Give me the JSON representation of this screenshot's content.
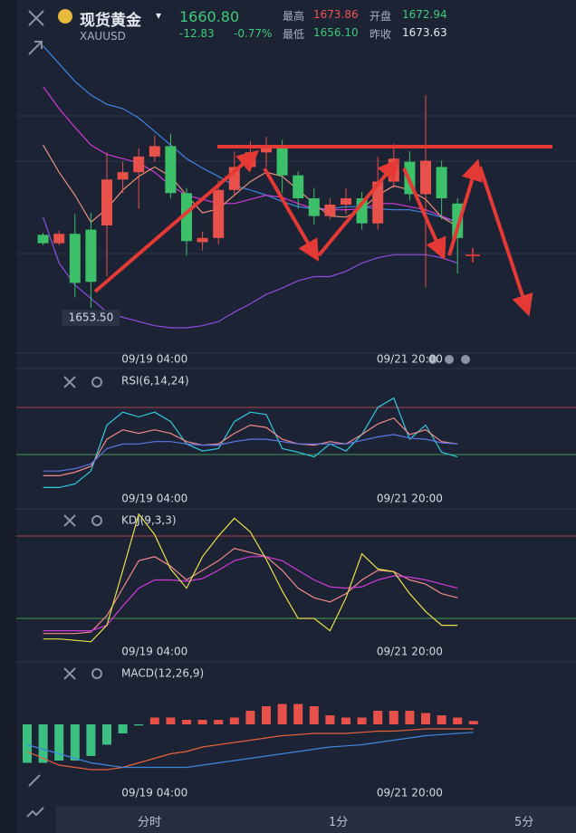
{
  "header": {
    "name": "现货黄金",
    "symbol": "XAUUSD",
    "price": "1660.80",
    "change": "-12.83",
    "change_pct": "-0.77%",
    "stats": [
      {
        "label": "最高",
        "value": "1673.86"
      },
      {
        "label": "开盘",
        "value": "1672.94"
      },
      {
        "label": "最低",
        "value": "1656.10"
      },
      {
        "label": "昨收",
        "value": "1673.63"
      }
    ]
  },
  "chart_data": [
    {
      "type": "candlestick",
      "ylim": [
        1648,
        1682
      ],
      "up_color": "#e8504a",
      "down_color": "#3cc06a",
      "categories": [
        null,
        null,
        null,
        null,
        null,
        null,
        null,
        "09/19 04:00",
        null,
        null,
        null,
        null,
        null,
        null,
        null,
        null,
        null,
        null,
        null,
        null,
        null,
        null,
        null,
        "09/21 20:00",
        null,
        null,
        null
      ],
      "open": [
        1660.5,
        1659.7,
        1660.6,
        1661.0,
        1661.4,
        1665.8,
        1666.5,
        1668.0,
        1669.0,
        1664.5,
        1659.8,
        1660.2,
        1664.8,
        1667.0,
        1668.4,
        1669.0,
        1666.2,
        1664.0,
        1662.3,
        1663.4,
        1664.0,
        1661.6,
        1665.6,
        1667.5,
        1664.4,
        1667.0,
        1663.5
      ],
      "high": [
        1660.7,
        1660.9,
        1662.5,
        1662.6,
        1668.4,
        1667.5,
        1668.8,
        1670.0,
        1670.2,
        1665.0,
        1660.8,
        1665.7,
        1668.5,
        1669.5,
        1669.9,
        1669.6,
        1666.6,
        1665.0,
        1664.0,
        1665.0,
        1664.6,
        1668.0,
        1669.2,
        1668.5,
        1673.86,
        1667.6,
        1664.0
      ],
      "low": [
        1659.5,
        1659.5,
        1654.5,
        1653.5,
        1656.5,
        1664.5,
        1663.0,
        1667.5,
        1664.0,
        1658.5,
        1659.0,
        1659.6,
        1664.3,
        1666.6,
        1667.0,
        1664.5,
        1663.0,
        1661.5,
        1662.0,
        1662.5,
        1661.0,
        1661.0,
        1665.0,
        1663.8,
        1655.5,
        1662.0,
        1656.8
      ],
      "close": [
        1659.7,
        1660.6,
        1655.9,
        1656.0,
        1665.8,
        1666.5,
        1668.0,
        1669.0,
        1664.5,
        1659.9,
        1660.2,
        1664.8,
        1667.0,
        1668.4,
        1669.0,
        1666.2,
        1664.0,
        1662.3,
        1663.4,
        1664.0,
        1661.6,
        1665.6,
        1667.8,
        1664.4,
        1667.6,
        1664.0,
        1660.2
      ],
      "min_label": {
        "value": 1653.5,
        "label": "1653.50"
      },
      "series": [
        {
          "color": "#3f86e0",
          "values": [
            1678.6,
            1676.9,
            1675.2,
            1673.9,
            1673.0,
            1672.6,
            1671.7,
            1670.4,
            1669.1,
            1667.8,
            1666.9,
            1666.1,
            1665.2,
            1664.8,
            1664.3,
            1663.7,
            1663.2,
            1663.0,
            1663.0,
            1663.2,
            1663.2,
            1663.0,
            1662.9,
            1662.9,
            1662.6,
            1662.2,
            1661.7
          ]
        },
        {
          "color": "#d13ad8",
          "values": [
            1674.7,
            1672.6,
            1670.8,
            1669.1,
            1668.2,
            1667.8,
            1667.4,
            1666.5,
            1665.2,
            1664.3,
            1663.9,
            1663.5,
            1663.5,
            1663.9,
            1664.3,
            1664.1,
            1663.5,
            1663.0,
            1662.9,
            1662.9,
            1663.0,
            1663.5,
            1663.5,
            1663.2,
            1662.9,
            1662.3,
            1661.7
          ]
        },
        {
          "color": "#e8927a",
          "values": [
            1669.1,
            1666.5,
            1664.3,
            1661.7,
            1663.0,
            1664.8,
            1666.1,
            1667.0,
            1666.1,
            1664.3,
            1662.6,
            1663.0,
            1664.3,
            1665.6,
            1666.5,
            1666.1,
            1664.8,
            1663.5,
            1662.3,
            1662.2,
            1663.0,
            1664.3,
            1665.2,
            1664.8,
            1663.9,
            1662.2,
            1661.3
          ]
        },
        {
          "color": "#8c4ee0",
          "values": [
            1662.2,
            1657.8,
            1655.7,
            1654.4,
            1653.1,
            1652.6,
            1652.2,
            1651.8,
            1651.6,
            1651.6,
            1651.8,
            1652.2,
            1653.1,
            1653.9,
            1654.8,
            1655.4,
            1656.1,
            1656.5,
            1656.5,
            1657.0,
            1657.8,
            1658.3,
            1658.6,
            1658.6,
            1658.6,
            1658.3,
            1657.8
          ]
        }
      ]
    },
    {
      "type": "line",
      "title": "RSI(6,14,24)",
      "ylim": [
        0,
        100
      ],
      "categories": [
        null,
        null,
        null,
        null,
        null,
        null,
        null,
        "09/19 04:00",
        null,
        null,
        null,
        null,
        null,
        null,
        null,
        null,
        null,
        null,
        null,
        null,
        null,
        null,
        null,
        "09/21 20:00",
        null,
        null,
        null
      ],
      "levels": [
        {
          "value": 70,
          "color": "#a8424a"
        },
        {
          "value": 30,
          "color": "#3f9a55"
        }
      ],
      "series": [
        {
          "color": "#34c9e0",
          "values": [
            2,
            2,
            5,
            16,
            55,
            66,
            62,
            66,
            58,
            39,
            33,
            35,
            58,
            66,
            64,
            35,
            32,
            28,
            39,
            33,
            47,
            70,
            78,
            43,
            55,
            32,
            28
          ]
        },
        {
          "color": "#f08a8a",
          "values": [
            12,
            12,
            15,
            20,
            43,
            51,
            48,
            51,
            48,
            41,
            38,
            39,
            48,
            55,
            53,
            43,
            39,
            38,
            41,
            39,
            47,
            56,
            61,
            47,
            51,
            41,
            39
          ]
        },
        {
          "color": "#5d78e8",
          "values": [
            16,
            16,
            18,
            22,
            35,
            39,
            39,
            41,
            41,
            39,
            38,
            38,
            41,
            43,
            43,
            41,
            39,
            39,
            39,
            39,
            42,
            45,
            47,
            44,
            43,
            40,
            39
          ]
        }
      ]
    },
    {
      "type": "line",
      "title": "KDJ(9,3,3)",
      "ylim": [
        0,
        100
      ],
      "categories": [
        null,
        null,
        null,
        null,
        null,
        null,
        null,
        "09/19 04:00",
        null,
        null,
        null,
        null,
        null,
        null,
        null,
        null,
        null,
        null,
        null,
        null,
        null,
        null,
        null,
        "09/21 20:00",
        null,
        null,
        null
      ],
      "levels": [
        {
          "value": 80,
          "color": "#a8424a"
        },
        {
          "value": 20,
          "color": "#3f9a55"
        }
      ],
      "series": [
        {
          "color": "#f08a8a",
          "values": [
            9,
            9,
            9,
            10,
            22,
            42,
            62,
            65,
            58,
            48,
            55,
            62,
            71,
            68,
            65,
            55,
            42,
            35,
            32,
            38,
            48,
            55,
            54,
            48,
            45,
            38,
            35
          ]
        },
        {
          "color": "#d13ad8",
          "values": [
            11,
            11,
            11,
            11,
            15,
            29,
            42,
            48,
            48,
            47,
            49,
            55,
            62,
            65,
            65,
            62,
            55,
            48,
            43,
            42,
            43,
            48,
            51,
            50,
            48,
            45,
            42
          ]
        },
        {
          "color": "#e8e04a",
          "values": [
            5,
            5,
            4,
            3,
            15,
            55,
            96,
            81,
            56,
            42,
            65,
            80,
            93,
            83,
            63,
            40,
            20,
            20,
            11,
            35,
            67,
            56,
            54,
            38,
            25,
            15,
            15
          ]
        }
      ]
    },
    {
      "type": "macd",
      "title": "MACD(12,26,9)",
      "ylim": [
        -2.4,
        2.4
      ],
      "up_color": "#e8504a",
      "down_color": "#3cc081",
      "categories": [
        null,
        null,
        null,
        null,
        null,
        null,
        null,
        null,
        "09/19 04:00",
        null,
        null,
        null,
        null,
        null,
        null,
        null,
        null,
        null,
        null,
        null,
        null,
        null,
        null,
        null,
        "09/21 20:00",
        null,
        null,
        null,
        null
      ],
      "histogram": [
        -1.7,
        -1.7,
        -1.6,
        -1.6,
        -1.4,
        -0.9,
        -0.4,
        -0.05,
        0.3,
        0.3,
        0.2,
        0.2,
        0.2,
        0.3,
        0.6,
        0.8,
        0.9,
        0.9,
        0.8,
        0.4,
        0.3,
        0.3,
        0.6,
        0.6,
        0.6,
        0.5,
        0.4,
        0.3,
        0.15
      ],
      "series": [
        {
          "color": "#e8603a",
          "values": [
            -1.2,
            -1.5,
            -1.8,
            -1.9,
            -2.0,
            -2.0,
            -1.9,
            -1.7,
            -1.5,
            -1.3,
            -1.2,
            -1.0,
            -0.9,
            -0.8,
            -0.7,
            -0.6,
            -0.5,
            -0.45,
            -0.4,
            -0.4,
            -0.4,
            -0.35,
            -0.3,
            -0.3,
            -0.25,
            -0.2,
            -0.2,
            -0.2,
            -0.2
          ]
        },
        {
          "color": "#3f86e0",
          "values": [
            -0.9,
            -1.1,
            -1.3,
            -1.5,
            -1.7,
            -1.8,
            -1.9,
            -1.9,
            -1.9,
            -1.9,
            -1.9,
            -1.8,
            -1.7,
            -1.6,
            -1.5,
            -1.4,
            -1.3,
            -1.2,
            -1.1,
            -1.0,
            -0.95,
            -0.9,
            -0.8,
            -0.7,
            -0.6,
            -0.5,
            -0.45,
            -0.4,
            -0.35
          ]
        }
      ]
    }
  ],
  "tabs": [
    "分时",
    "1分",
    "5分"
  ]
}
